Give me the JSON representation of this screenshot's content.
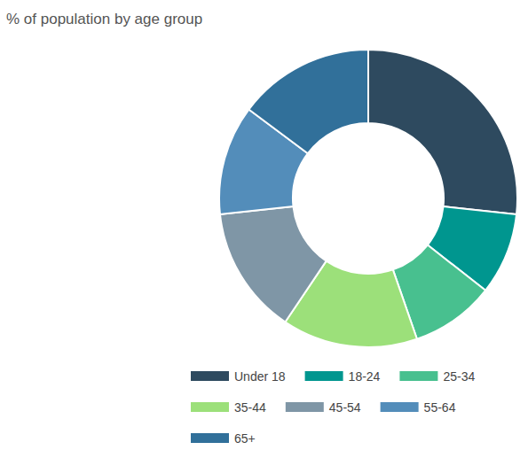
{
  "chart_data": {
    "type": "pie",
    "title": "% of population by age group",
    "categories": [
      "Under 18",
      "18-24",
      "25-34",
      "35-44",
      "45-54",
      "55-64",
      "65+"
    ],
    "values": [
      26.7,
      8.9,
      9.1,
      14.7,
      13.9,
      11.9,
      14.8
    ],
    "colors": [
      "#2e4a5f",
      "#00968f",
      "#48c08f",
      "#9ce07a",
      "#7f96a6",
      "#538dba",
      "#31709a"
    ],
    "legend": "bottom",
    "data_labels": false
  }
}
